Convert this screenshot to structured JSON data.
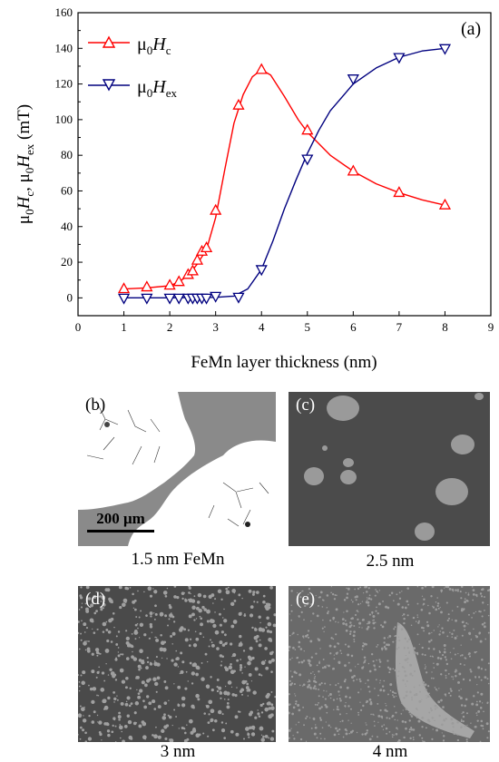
{
  "chart_data": {
    "type": "line",
    "panel_label": "(a)",
    "xlabel": "FeMn layer thickness (nm)",
    "ylabel": "μ0Hc, μ0Hex (mT)",
    "xlim": [
      0,
      9
    ],
    "ylim": [
      -10,
      160
    ],
    "xticks": [
      0,
      1,
      2,
      3,
      4,
      5,
      6,
      7,
      8,
      9
    ],
    "yticks": [
      0,
      20,
      40,
      60,
      80,
      100,
      120,
      140,
      160
    ],
    "legend_position": "top-left",
    "series": [
      {
        "name": "μ0Hc",
        "color": "#ff0000",
        "marker": "triangle-up",
        "points": [
          [
            1,
            5
          ],
          [
            1.5,
            6
          ],
          [
            2,
            7
          ],
          [
            2.2,
            9
          ],
          [
            2.4,
            13
          ],
          [
            2.5,
            15
          ],
          [
            2.6,
            21
          ],
          [
            2.7,
            26
          ],
          [
            2.8,
            28
          ],
          [
            3,
            49
          ],
          [
            3.5,
            108
          ],
          [
            4,
            128
          ],
          [
            5,
            94
          ],
          [
            6,
            71
          ],
          [
            7,
            59
          ],
          [
            8,
            52
          ]
        ],
        "curve": [
          [
            1,
            5
          ],
          [
            1.5,
            5.6
          ],
          [
            2,
            6.8
          ],
          [
            2.2,
            9
          ],
          [
            2.4,
            12.5
          ],
          [
            2.6,
            19
          ],
          [
            2.8,
            27
          ],
          [
            3,
            45
          ],
          [
            3.2,
            72
          ],
          [
            3.4,
            98
          ],
          [
            3.6,
            114
          ],
          [
            3.8,
            124
          ],
          [
            4,
            128
          ],
          [
            4.2,
            125
          ],
          [
            4.5,
            113
          ],
          [
            4.8,
            100
          ],
          [
            5,
            93
          ],
          [
            5.5,
            80
          ],
          [
            6,
            71
          ],
          [
            6.5,
            64
          ],
          [
            7,
            59
          ],
          [
            7.5,
            55
          ],
          [
            8,
            52
          ]
        ]
      },
      {
        "name": "μ0Hex",
        "color": "#00007f",
        "marker": "triangle-down",
        "points": [
          [
            1,
            0
          ],
          [
            1.5,
            0
          ],
          [
            2,
            0
          ],
          [
            2.2,
            0
          ],
          [
            2.4,
            0
          ],
          [
            2.5,
            0
          ],
          [
            2.6,
            0
          ],
          [
            2.7,
            0
          ],
          [
            2.8,
            0
          ],
          [
            3,
            1
          ],
          [
            3.5,
            0.5
          ],
          [
            4,
            16
          ],
          [
            5,
            78
          ],
          [
            6,
            123
          ],
          [
            7,
            135
          ],
          [
            8,
            140
          ]
        ],
        "curve": [
          [
            1,
            0
          ],
          [
            2,
            0
          ],
          [
            3,
            0.3
          ],
          [
            3.4,
            1
          ],
          [
            3.7,
            5
          ],
          [
            4,
            16
          ],
          [
            4.25,
            32
          ],
          [
            4.5,
            50
          ],
          [
            4.75,
            66
          ],
          [
            5,
            81
          ],
          [
            5.25,
            94
          ],
          [
            5.5,
            105
          ],
          [
            6,
            120
          ],
          [
            6.5,
            129
          ],
          [
            7,
            135
          ],
          [
            7.5,
            138.5
          ],
          [
            8,
            140
          ]
        ]
      }
    ]
  },
  "legend": {
    "hc_prefix": "μ",
    "hc_sub0": "0",
    "hc_var": "H",
    "hc_sub": "c",
    "hex_prefix": "μ",
    "hex_sub0": "0",
    "hex_var": "H",
    "hex_sub": "ex"
  },
  "ylabel_parts": {
    "mu": "μ",
    "zero": "0",
    "h": "H",
    "c": "c",
    "sep": ", ",
    "ex": "ex",
    "unit": " (mT)"
  },
  "images": {
    "panel_b": {
      "tag": "(b)",
      "caption": "1.5 nm FeMn",
      "scalebar": "200 μm"
    },
    "panel_c": {
      "tag": "(c)",
      "caption": "2.5 nm"
    },
    "panel_d": {
      "tag": "(d)",
      "caption": "3 nm"
    },
    "panel_e": {
      "tag": "(e)",
      "caption": "4 nm"
    }
  }
}
